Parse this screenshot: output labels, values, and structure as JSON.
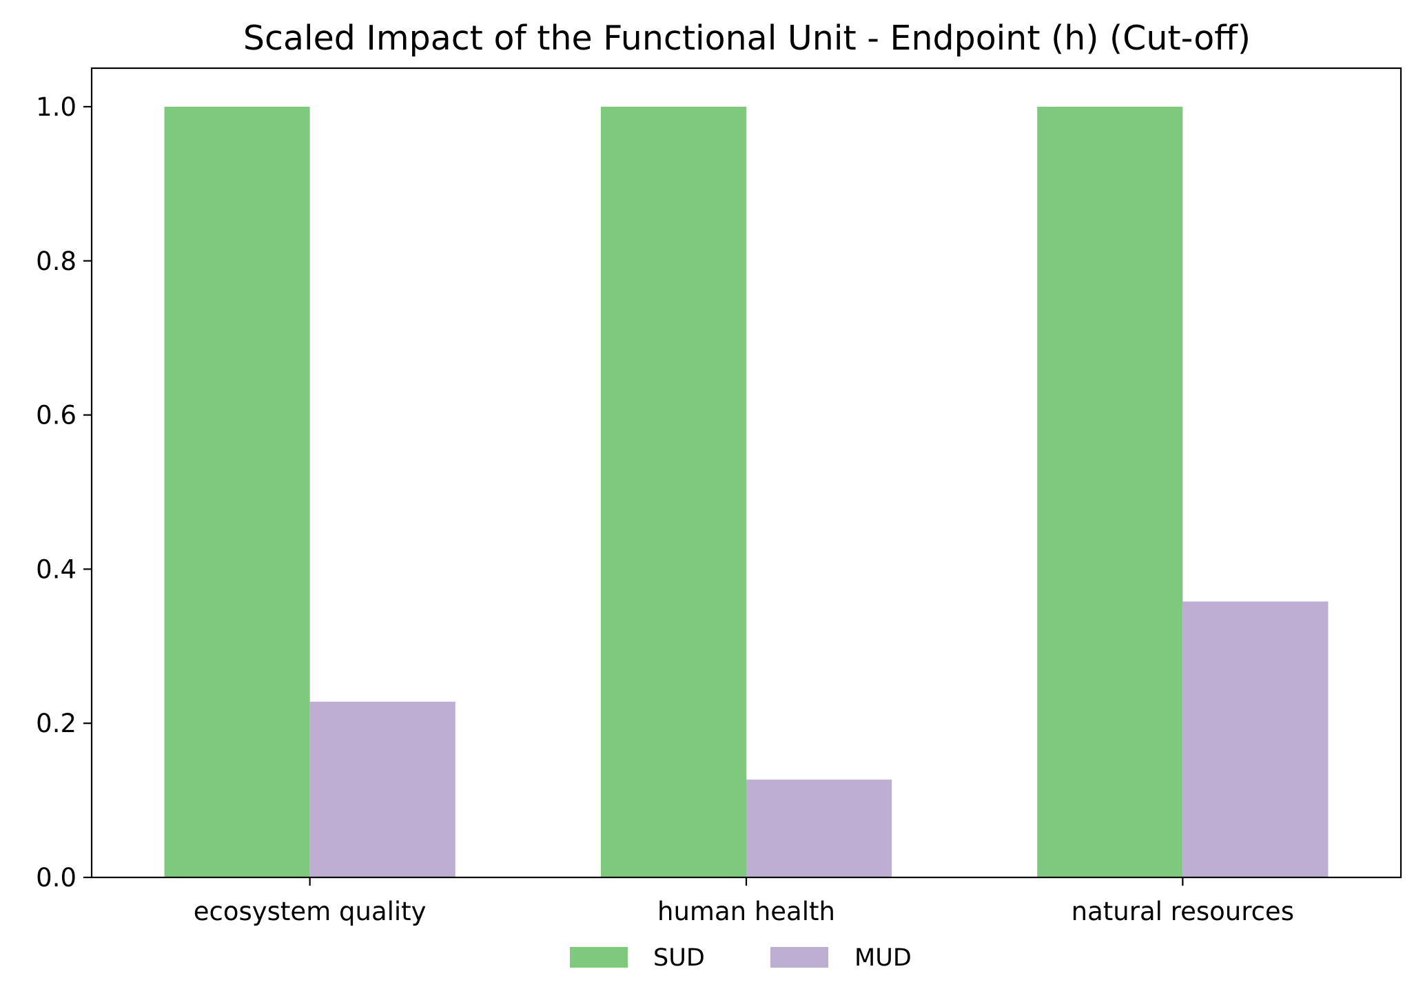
{
  "chart_data": {
    "type": "bar",
    "title": "Scaled Impact of the Functional Unit - Endpoint (h) (Cut-off)",
    "xlabel": "",
    "ylabel": "",
    "categories": [
      "ecosystem quality",
      "human health",
      "natural resources"
    ],
    "series": [
      {
        "name": "SUD",
        "color": "#7fc97f",
        "values": [
          1.0,
          1.0,
          1.0
        ]
      },
      {
        "name": "MUD",
        "color": "#beaed4",
        "values": [
          0.228,
          0.127,
          0.358
        ]
      }
    ],
    "ylim": [
      0,
      1.05
    ],
    "yticks": [
      "0.0",
      "0.2",
      "0.4",
      "0.6",
      "0.8",
      "1.0"
    ],
    "grid": false,
    "legend_position": "bottom-center"
  }
}
